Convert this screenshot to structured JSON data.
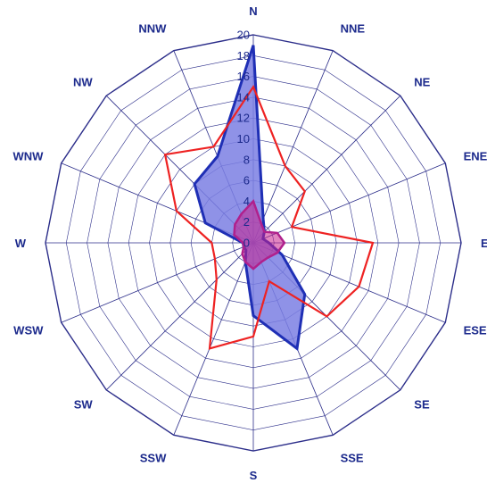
{
  "chart_data": {
    "type": "radar",
    "directions": [
      "N",
      "NNE",
      "NE",
      "ENE",
      "E",
      "ESE",
      "SE",
      "SSE",
      "S",
      "SSW",
      "SW",
      "WSW",
      "W",
      "WNW",
      "NW",
      "NNW"
    ],
    "radial_ticks": [
      "0",
      "2",
      "4",
      "6",
      "8",
      "10",
      "12",
      "14",
      "16",
      "18",
      "20"
    ],
    "rlim": [
      0,
      20
    ],
    "grid": true,
    "series": [
      {
        "values": [
          19,
          2.5,
          1.5,
          1,
          1.5,
          3,
          7,
          11,
          7,
          2,
          1,
          1,
          1,
          5,
          8,
          9
        ],
        "color": "#1f2fb5",
        "fill": "#7b7fe3",
        "fill_opacity": 0.85,
        "stroke_width": 3
      },
      {
        "values": [
          15,
          8,
          7,
          4,
          11.5,
          11,
          10,
          4,
          9,
          11,
          5,
          4,
          4,
          8,
          12,
          10
        ],
        "color": "#ee2222",
        "fill": "none",
        "fill_opacity": 0,
        "stroke_width": 2.2
      },
      {
        "values": [
          4,
          2,
          1.5,
          2.5,
          3,
          2.5,
          2,
          2,
          2.5,
          2,
          1.5,
          1,
          1,
          2,
          2.5,
          3
        ],
        "color": "#b0208c",
        "fill": "#c8208c",
        "fill_opacity": 0.55,
        "stroke_width": 2.5
      }
    ]
  }
}
